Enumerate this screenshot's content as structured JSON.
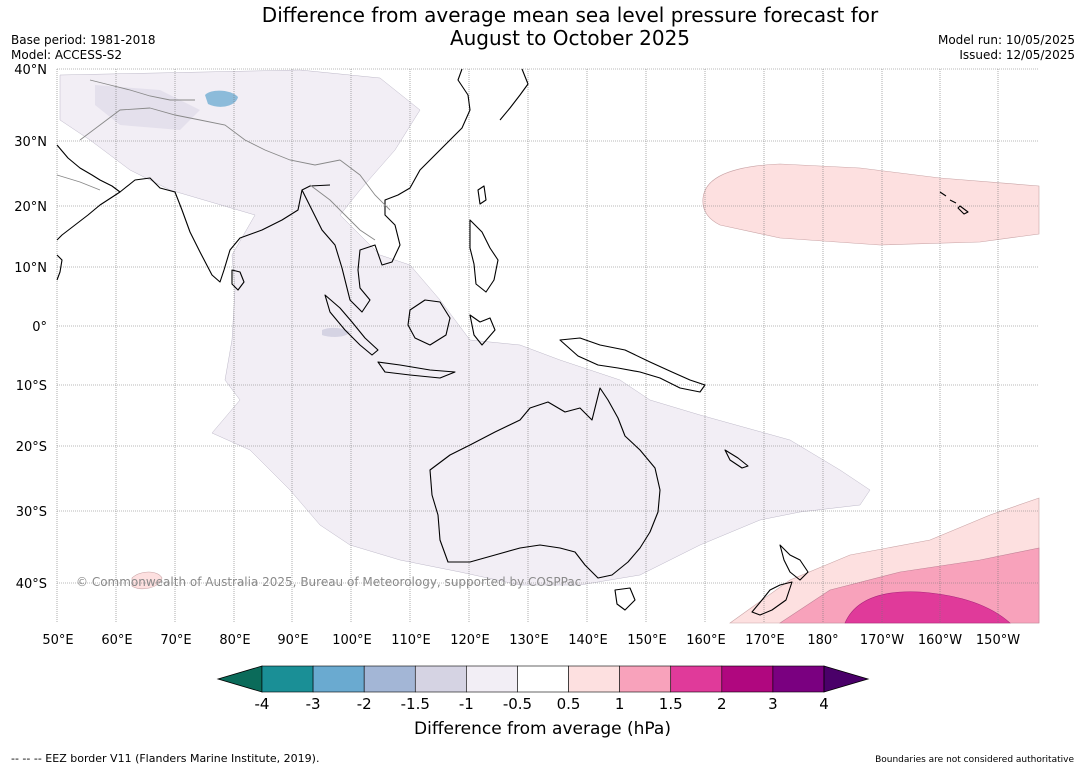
{
  "title_line1": "Difference from average mean sea level pressure forecast for",
  "title_line2": "August to October 2025",
  "base_period": "Base period: 1981-2018",
  "model": "Model: ACCESS-S2",
  "model_run": "Model run: 10/05/2025",
  "issued": "Issued: 12/05/2025",
  "copyright": "© Commonwealth of Australia 2025, Bureau of Meteorology, supported by COSPPac",
  "lat_labels": [
    "40°N",
    "30°N",
    "20°N",
    "10°N",
    "0°",
    "10°S",
    "20°S",
    "30°S",
    "40°S"
  ],
  "lon_labels": [
    "50°E",
    "60°E",
    "70°E",
    "80°E",
    "90°E",
    "100°E",
    "110°E",
    "120°E",
    "130°E",
    "140°E",
    "150°E",
    "160°E",
    "170°E",
    "180°",
    "170°W",
    "160°W",
    "150°W"
  ],
  "colorbar": {
    "title": "Difference from average (hPa)",
    "ticks": [
      "-4",
      "-3",
      "-2",
      "-1.5",
      "-1",
      "-0.5",
      "0.5",
      "1",
      "1.5",
      "2",
      "3",
      "4"
    ],
    "colors": [
      "#1a8f96",
      "#6aaad0",
      "#a3b6d6",
      "#d5d3e3",
      "#f2eef5",
      "#ffffff",
      "#fde0e0",
      "#f8a2bb",
      "#e03a9a",
      "#b0077f",
      "#7a0080"
    ],
    "under_color": "#0b6b5a",
    "over_color": "#4a0069"
  },
  "footer_left": "--  --  -- EEZ border V11 (Flanders Marine Institute, 2019).",
  "footer_right": "Boundaries are not considered authoritative"
}
